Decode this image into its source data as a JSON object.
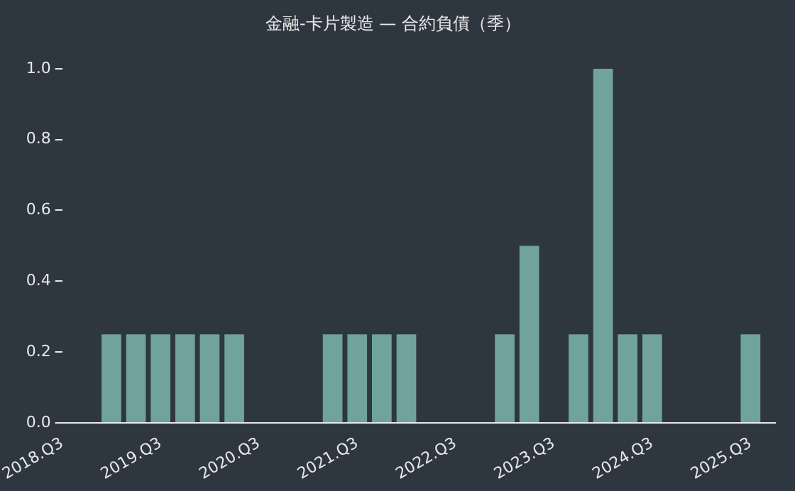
{
  "chart_data": {
    "type": "bar",
    "title": "金融-卡片製造 — 合約負債（季）",
    "categories": [
      "2018.Q3",
      null,
      null,
      null,
      "2019.Q3",
      null,
      null,
      null,
      "2020.Q3",
      null,
      null,
      null,
      "2021.Q3",
      null,
      null,
      null,
      "2022.Q3",
      null,
      null,
      null,
      "2023.Q3",
      null,
      null,
      null,
      "2024.Q3",
      null,
      null,
      null,
      "2025.Q3",
      null
    ],
    "values": [
      0,
      0,
      0.25,
      0.25,
      0.25,
      0.25,
      0.25,
      0.25,
      0,
      0,
      0,
      0.25,
      0.25,
      0.25,
      0.25,
      0,
      0,
      0,
      0.25,
      0.5,
      0,
      0.25,
      1,
      0.25,
      0.25,
      0,
      0,
      0,
      0.25,
      0
    ],
    "color": "#6fa39b",
    "ylim": [
      0,
      1
    ],
    "yticks": [
      {
        "value": 0,
        "label": "0.0"
      },
      {
        "value": 0.2,
        "label": "0.2"
      },
      {
        "value": 0.4,
        "label": "0.4"
      },
      {
        "value": 0.6,
        "label": "0.6"
      },
      {
        "value": 0.8,
        "label": "0.8"
      },
      {
        "value": 1,
        "label": "1.0"
      }
    ],
    "grid": false,
    "legend": false
  }
}
